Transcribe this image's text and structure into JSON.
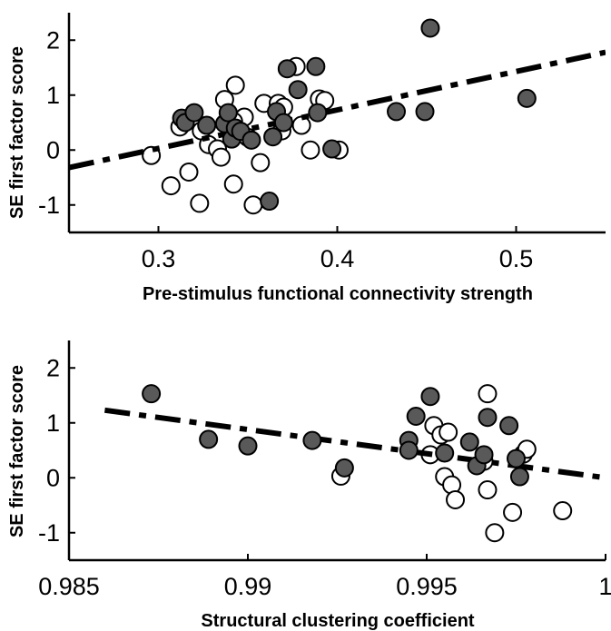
{
  "chart_data": [
    {
      "type": "scatter",
      "xlabel": "Pre-stimulus functional connectivity strength",
      "ylabel": "SE first factor score",
      "xlim": [
        0.25,
        0.55
      ],
      "ylim": [
        -1.5,
        2.5
      ],
      "xticks": [
        0.3,
        0.4,
        0.5
      ],
      "xtick_labels": [
        "0.3",
        "0.4",
        "0.5"
      ],
      "yticks": [
        -1,
        0,
        1,
        2
      ],
      "ytick_labels": [
        "-1",
        "0",
        "1",
        "2"
      ],
      "fit_line": {
        "x": [
          0.25,
          0.55
        ],
        "y": [
          -0.32,
          1.78
        ]
      },
      "series": [
        {
          "marker": "filled",
          "color": "#595959",
          "points": [
            [
              0.452,
              2.22
            ],
            [
              0.313,
              0.58
            ],
            [
              0.315,
              0.5
            ],
            [
              0.32,
              0.68
            ],
            [
              0.327,
              0.45
            ],
            [
              0.337,
              0.48
            ],
            [
              0.339,
              0.68
            ],
            [
              0.341,
              0.2
            ],
            [
              0.343,
              0.4
            ],
            [
              0.346,
              0.34
            ],
            [
              0.352,
              0.18
            ],
            [
              0.364,
              0.24
            ],
            [
              0.366,
              0.7
            ],
            [
              0.37,
              0.5
            ],
            [
              0.372,
              1.48
            ],
            [
              0.378,
              1.1
            ],
            [
              0.388,
              1.52
            ],
            [
              0.389,
              0.68
            ],
            [
              0.397,
              0.02
            ],
            [
              0.362,
              -0.93
            ],
            [
              0.433,
              0.7
            ],
            [
              0.449,
              0.7
            ],
            [
              0.506,
              0.94
            ]
          ]
        },
        {
          "marker": "open",
          "color": "#ffffff",
          "points": [
            [
              0.296,
              -0.1
            ],
            [
              0.307,
              -0.65
            ],
            [
              0.312,
              0.42
            ],
            [
              0.317,
              -0.4
            ],
            [
              0.323,
              -0.97
            ],
            [
              0.324,
              0.35
            ],
            [
              0.328,
              0.1
            ],
            [
              0.333,
              0.02
            ],
            [
              0.335,
              -0.13
            ],
            [
              0.337,
              0.92
            ],
            [
              0.342,
              -0.62
            ],
            [
              0.343,
              1.18
            ],
            [
              0.348,
              0.6
            ],
            [
              0.35,
              0.23
            ],
            [
              0.353,
              -1.0
            ],
            [
              0.357,
              -0.23
            ],
            [
              0.359,
              0.85
            ],
            [
              0.367,
              0.85
            ],
            [
              0.369,
              0.35
            ],
            [
              0.37,
              0.78
            ],
            [
              0.377,
              1.52
            ],
            [
              0.38,
              0.45
            ],
            [
              0.385,
              0.0
            ],
            [
              0.39,
              0.93
            ],
            [
              0.393,
              0.9
            ],
            [
              0.401,
              0.0
            ],
            [
              0.342,
              0.52
            ]
          ]
        }
      ]
    },
    {
      "type": "scatter",
      "xlabel": "Structural clustering coefficient",
      "ylabel": "SE first factor score",
      "xlim": [
        0.985,
        1.0
      ],
      "ylim": [
        -1.5,
        2.5
      ],
      "xticks": [
        0.985,
        0.99,
        0.995,
        1
      ],
      "xtick_labels": [
        "0.985",
        "0.99",
        "0.995",
        "1"
      ],
      "yticks": [
        -1,
        0,
        1,
        2
      ],
      "ytick_labels": [
        "-1",
        "0",
        "1",
        "2"
      ],
      "fit_line": {
        "x": [
          0.986,
          1.0
        ],
        "y": [
          1.23,
          0.0
        ]
      },
      "series": [
        {
          "marker": "filled",
          "color": "#595959",
          "points": [
            [
              0.9873,
              1.53
            ],
            [
              0.9889,
              0.7
            ],
            [
              0.99,
              0.58
            ],
            [
              0.9918,
              0.68
            ],
            [
              0.9927,
              0.18
            ],
            [
              0.9945,
              0.68
            ],
            [
              0.9945,
              0.5
            ],
            [
              0.9947,
              1.12
            ],
            [
              0.9951,
              1.48
            ],
            [
              0.9955,
              0.45
            ],
            [
              0.9962,
              0.65
            ],
            [
              0.9964,
              0.22
            ],
            [
              0.9966,
              0.42
            ],
            [
              0.9967,
              1.1
            ],
            [
              0.9973,
              0.95
            ],
            [
              0.9975,
              0.35
            ],
            [
              0.9976,
              0.02
            ]
          ]
        },
        {
          "marker": "open",
          "color": "#ffffff",
          "points": [
            [
              0.9926,
              0.03
            ],
            [
              0.9951,
              0.42
            ],
            [
              0.9952,
              0.95
            ],
            [
              0.9954,
              0.78
            ],
            [
              0.9955,
              0.02
            ],
            [
              0.9956,
              0.83
            ],
            [
              0.9957,
              -0.13
            ],
            [
              0.9958,
              -0.4
            ],
            [
              0.9967,
              -0.22
            ],
            [
              0.9967,
              1.53
            ],
            [
              0.9969,
              -1.0
            ],
            [
              0.9974,
              -0.63
            ],
            [
              0.9977,
              0.43
            ],
            [
              0.9978,
              0.52
            ],
            [
              0.9988,
              -0.6
            ],
            [
              0.9966,
              0.3
            ]
          ]
        }
      ]
    }
  ]
}
